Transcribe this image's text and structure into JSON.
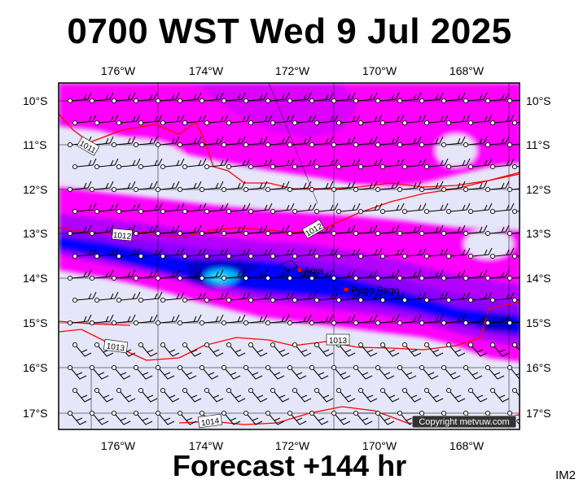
{
  "title": "0700 WST Wed 9 Jul 2025",
  "subtitle": "Forecast +144 hr",
  "image_code": "IM2",
  "copyright": "Copyright metvuw.com",
  "map": {
    "lon_labels": [
      "176°W",
      "174°W",
      "172°W",
      "170°W",
      "168°W"
    ],
    "lat_labels": [
      "10°S",
      "11°S",
      "12°S",
      "13°S",
      "14°S",
      "15°S",
      "16°S",
      "17°S"
    ],
    "places": [
      {
        "name": "Apia"
      },
      {
        "name": "Pago Pago"
      }
    ],
    "isobar_labels": [
      "1011",
      "1012",
      "1012",
      "1013",
      "1013",
      "1014"
    ],
    "colors": {
      "lavender": "#e6e6fa",
      "magenta": "#ff00ff",
      "violet": "#cc00ff",
      "purple": "#8a00ff",
      "blue": "#0000ff",
      "deep_blue": "#0000cc",
      "cyan": "#00ccff",
      "isobar": "#ff0000"
    }
  }
}
